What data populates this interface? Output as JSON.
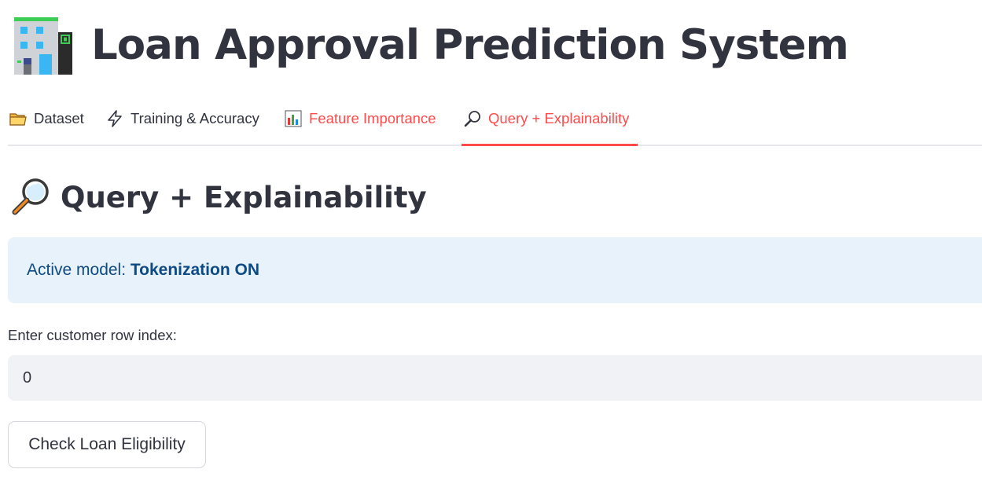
{
  "header": {
    "title": "Loan Approval Prediction System",
    "icon": "bank-building-icon"
  },
  "tabs": [
    {
      "label": "Dataset",
      "icon": "folder-icon",
      "active": false
    },
    {
      "label": "Training & Accuracy",
      "icon": "lightning-icon",
      "active": false
    },
    {
      "label": "Feature Importance",
      "icon": "bar-chart-icon",
      "active": false
    },
    {
      "label": "Query + Explainability",
      "icon": "magnifier-icon",
      "active": true
    }
  ],
  "section": {
    "title": "Query + Explainability",
    "icon": "magnifier-icon"
  },
  "info": {
    "prefix": "Active model: ",
    "value": "Tokenization ON"
  },
  "form": {
    "label": "Enter customer row index:",
    "value": "0",
    "button_label": "Check Loan Eligibility"
  },
  "colors": {
    "accent": "#ff4b4b",
    "info_bg": "#e8f2fb",
    "info_text": "#0e4a84",
    "input_bg": "#f0f2f6"
  }
}
